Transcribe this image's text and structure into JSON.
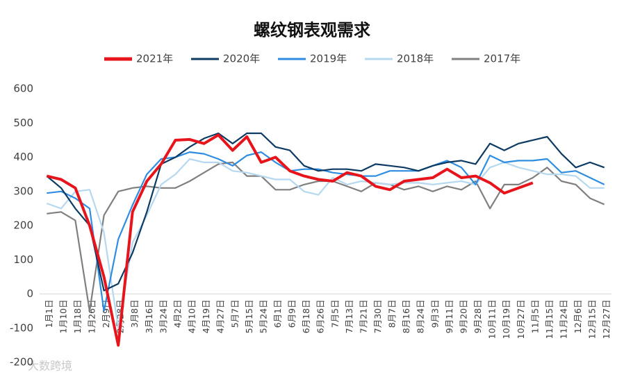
{
  "chart_data": {
    "type": "line",
    "title": "螺纹钢表观需求",
    "categories": [
      "1月1日",
      "1月10日",
      "1月18日",
      "1月26日",
      "2月9日",
      "2月28日",
      "3月8日",
      "3月16日",
      "3月24日",
      "4月2日",
      "4月10日",
      "4月19日",
      "4月27日",
      "5月7日",
      "5月15日",
      "5月24日",
      "6月1日",
      "6月9日",
      "6月18日",
      "6月26日",
      "7月5日",
      "7月13日",
      "7月21日",
      "7月30日",
      "8月7日",
      "8月16日",
      "8月24日",
      "9月3日",
      "9月11日",
      "9月20日",
      "9月28日",
      "10月11日",
      "10月19日",
      "10月27日",
      "11月5日",
      "11月15日",
      "11月24日",
      "12月6日",
      "12月15日",
      "12月27日"
    ],
    "series": [
      {
        "name": "2021年",
        "color": "#e8141b",
        "values": [
          345,
          335,
          310,
          200,
          50,
          -150,
          240,
          330,
          380,
          450,
          452,
          440,
          465,
          420,
          460,
          385,
          400,
          360,
          345,
          335,
          330,
          355,
          345,
          315,
          305,
          330,
          335,
          340,
          365,
          340,
          345,
          325,
          295,
          310,
          325,
          null,
          null,
          null,
          null,
          null
        ]
      },
      {
        "name": "2020年",
        "color": "#0d3a63",
        "values": [
          345,
          310,
          250,
          200,
          10,
          30,
          120,
          240,
          380,
          400,
          430,
          455,
          470,
          440,
          470,
          470,
          430,
          420,
          375,
          360,
          365,
          365,
          360,
          380,
          375,
          370,
          360,
          375,
          385,
          390,
          380,
          440,
          420,
          440,
          450,
          460,
          410,
          370,
          385,
          370
        ]
      },
      {
        "name": "2019年",
        "color": "#2e8de0",
        "values": [
          295,
          300,
          280,
          250,
          -50,
          160,
          260,
          350,
          395,
          400,
          415,
          410,
          395,
          375,
          405,
          415,
          385,
          360,
          365,
          365,
          355,
          350,
          345,
          345,
          360,
          360,
          360,
          375,
          390,
          370,
          320,
          405,
          385,
          390,
          390,
          395,
          355,
          360,
          340,
          320
        ]
      },
      {
        "name": "2018年",
        "color": "#b5d8f0",
        "values": [
          265,
          250,
          300,
          305,
          180,
          -100,
          150,
          230,
          320,
          350,
          395,
          385,
          385,
          360,
          355,
          345,
          335,
          335,
          300,
          290,
          340,
          320,
          330,
          325,
          320,
          325,
          325,
          320,
          325,
          330,
          320,
          370,
          385,
          370,
          360,
          350,
          350,
          345,
          310,
          310
        ]
      },
      {
        "name": "2017年",
        "color": "#7f7f7f",
        "values": [
          235,
          240,
          215,
          -50,
          230,
          300,
          310,
          315,
          310,
          310,
          330,
          355,
          380,
          385,
          345,
          345,
          305,
          305,
          320,
          330,
          330,
          315,
          300,
          325,
          320,
          305,
          315,
          300,
          315,
          305,
          330,
          250,
          320,
          320,
          340,
          370,
          330,
          320,
          280,
          262
        ]
      }
    ],
    "ylim": [
      -200,
      600
    ],
    "yticks": [
      -200,
      -100,
      0,
      100,
      200,
      300,
      400,
      500,
      600
    ],
    "legend": "top",
    "watermark": "大数跨境"
  }
}
